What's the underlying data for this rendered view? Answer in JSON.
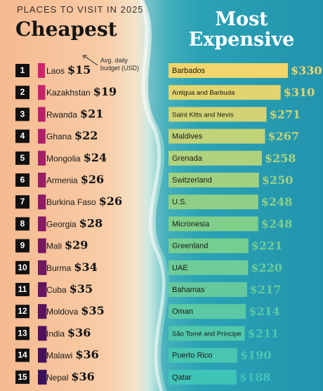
{
  "header": {
    "small_title": "PLACES TO VISIT IN 2025",
    "left_title": "Cheapest",
    "right_title_line1": "Most",
    "right_title_line2": "Expensive",
    "note_line1": "Avg. daily",
    "note_line2": "budget (USD)"
  },
  "colors": {
    "sand": "#f7c49b",
    "sea": "#1f93ad",
    "yellow": "#f2d56b",
    "green": "#7fcf8a",
    "teal": "#3fc4b8",
    "magenta": "#d1246e",
    "purple": "#3a0f5a"
  },
  "chart_data": [
    {
      "type": "bar",
      "title": "Cheapest",
      "unit": "USD",
      "categories": [
        "Laos",
        "Kazakhstan",
        "Rwanda",
        "Ghana",
        "Mongolia",
        "Armenia",
        "Burkina Faso",
        "Georgia",
        "Mali",
        "Burma",
        "Cuba",
        "Moldova",
        "India",
        "Malawi",
        "Nepal"
      ],
      "values": [
        15,
        19,
        21,
        22,
        24,
        26,
        26,
        28,
        29,
        34,
        35,
        35,
        36,
        36,
        36
      ],
      "labels": [
        "$15",
        "$19",
        "$21",
        "$22",
        "$24",
        "$26",
        "$26",
        "$28",
        "$29",
        "$34",
        "$35",
        "$35",
        "$36",
        "$36",
        "$36"
      ],
      "ranks": [
        "1",
        "2",
        "3",
        "4",
        "5",
        "6",
        "7",
        "8",
        "9",
        "10",
        "11",
        "12",
        "13",
        "14",
        "15"
      ]
    },
    {
      "type": "bar",
      "title": "Most Expensive",
      "unit": "USD",
      "categories": [
        "Barbados",
        "Antigua and Barbuda",
        "Saint Kitts and Nevis",
        "Maldives",
        "Grenada",
        "Switzerland",
        "U.S.",
        "Micronesia",
        "Greenland",
        "UAE",
        "Bahamas",
        "Oman",
        "São Tomé and Príncipe",
        "Puerto Rico",
        "Qatar"
      ],
      "values": [
        330,
        310,
        271,
        267,
        258,
        250,
        248,
        248,
        221,
        220,
        217,
        214,
        211,
        190,
        188
      ],
      "labels": [
        "$330",
        "$310",
        "$271",
        "$267",
        "$258",
        "$250",
        "$248",
        "$248",
        "$221",
        "$220",
        "$217",
        "$214",
        "$211",
        "$190",
        "$188"
      ]
    }
  ]
}
